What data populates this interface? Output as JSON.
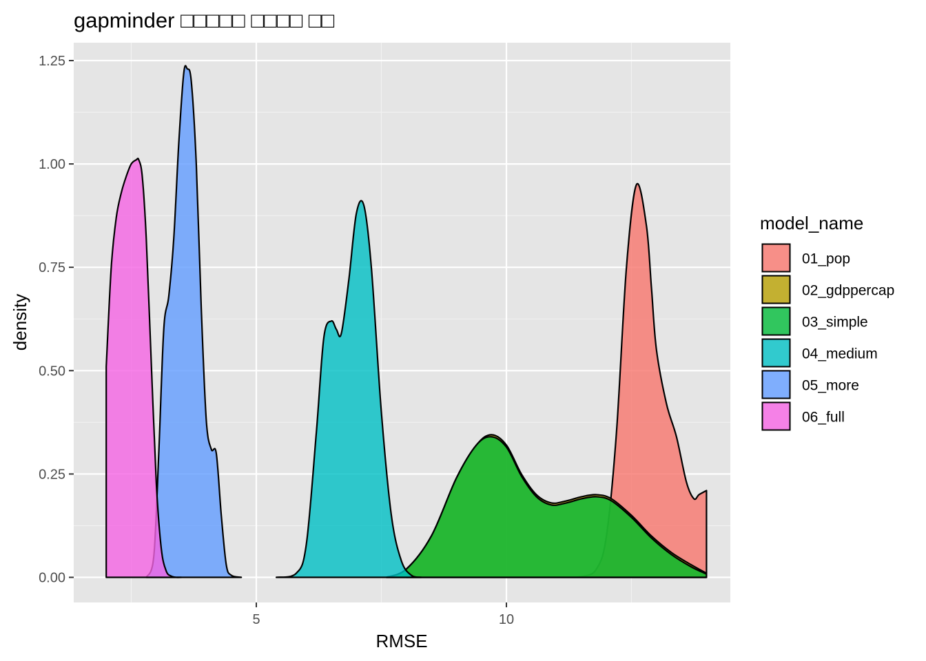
{
  "chart_data": {
    "type": "area",
    "title": "gapminder □□□□□ □□□□ □□",
    "xlabel": "RMSE",
    "ylabel": "density",
    "xlim": [
      1.9,
      14.0
    ],
    "ylim": [
      0.0,
      1.25
    ],
    "x_ticks": [
      5,
      10
    ],
    "x_tick_labels": [
      "5",
      "10"
    ],
    "y_ticks": [
      0.0,
      0.25,
      0.5,
      0.75,
      1.0,
      1.25
    ],
    "y_tick_labels": [
      "0.00",
      "0.25",
      "0.50",
      "0.75",
      "1.00",
      "1.25"
    ],
    "grid": true,
    "fill_alpha": 0.8,
    "legend": {
      "title": "model_name",
      "position": "right"
    },
    "series": [
      {
        "name": "01_pop",
        "color": "#F8766D",
        "x": [
          8.0,
          9.0,
          10.0,
          11.0,
          11.5,
          11.8,
          12.0,
          12.2,
          12.4,
          12.6,
          12.8,
          12.9,
          13.0,
          13.2,
          13.4,
          13.6,
          13.75,
          13.85,
          14.0
        ],
        "y": [
          0.0,
          0.0,
          0.0,
          0.0,
          0.002,
          0.02,
          0.1,
          0.35,
          0.75,
          0.95,
          0.85,
          0.7,
          0.55,
          0.42,
          0.34,
          0.23,
          0.19,
          0.2,
          0.21
        ]
      },
      {
        "name": "02_gdppercap",
        "color": "#B79F00",
        "x": [
          7.6,
          8.0,
          8.5,
          9.0,
          9.4,
          9.7,
          10.0,
          10.3,
          10.6,
          10.9,
          11.2,
          11.5,
          11.8,
          12.1,
          12.5,
          12.9,
          13.3,
          13.7,
          14.0
        ],
        "y": [
          0.0,
          0.02,
          0.1,
          0.24,
          0.32,
          0.345,
          0.32,
          0.25,
          0.2,
          0.18,
          0.185,
          0.195,
          0.2,
          0.19,
          0.15,
          0.1,
          0.06,
          0.03,
          0.01
        ]
      },
      {
        "name": "03_simple",
        "color": "#00BA38",
        "x": [
          7.6,
          8.0,
          8.5,
          9.0,
          9.4,
          9.7,
          10.0,
          10.3,
          10.6,
          10.9,
          11.2,
          11.5,
          11.8,
          12.1,
          12.5,
          12.9,
          13.3,
          13.7,
          14.0
        ],
        "y": [
          0.0,
          0.02,
          0.1,
          0.24,
          0.32,
          0.34,
          0.315,
          0.245,
          0.195,
          0.175,
          0.18,
          0.19,
          0.195,
          0.185,
          0.145,
          0.095,
          0.055,
          0.025,
          0.008
        ]
      },
      {
        "name": "04_medium",
        "color": "#00BFC4",
        "x": [
          5.4,
          5.8,
          6.0,
          6.2,
          6.35,
          6.5,
          6.6,
          6.7,
          6.85,
          7.0,
          7.15,
          7.3,
          7.5,
          7.7,
          7.9,
          8.1,
          8.3
        ],
        "y": [
          0.0,
          0.01,
          0.08,
          0.35,
          0.58,
          0.62,
          0.6,
          0.59,
          0.72,
          0.88,
          0.9,
          0.75,
          0.4,
          0.15,
          0.04,
          0.005,
          0.0
        ]
      },
      {
        "name": "05_more",
        "color": "#619CFF",
        "x": [
          2.8,
          2.95,
          3.05,
          3.15,
          3.25,
          3.35,
          3.45,
          3.55,
          3.62,
          3.7,
          3.8,
          3.9,
          4.0,
          4.1,
          4.2,
          4.3,
          4.4,
          4.5,
          4.7
        ],
        "y": [
          0.0,
          0.05,
          0.3,
          0.6,
          0.68,
          0.82,
          1.05,
          1.22,
          1.23,
          1.2,
          1.0,
          0.65,
          0.38,
          0.31,
          0.3,
          0.15,
          0.03,
          0.005,
          0.0
        ]
      },
      {
        "name": "06_full",
        "color": "#F564E3",
        "x": [
          2.0,
          2.1,
          2.2,
          2.3,
          2.4,
          2.5,
          2.6,
          2.65,
          2.72,
          2.8,
          2.9,
          3.0,
          3.1,
          3.2,
          3.3,
          3.4,
          3.5
        ],
        "y": [
          0.51,
          0.75,
          0.87,
          0.93,
          0.97,
          1.0,
          1.01,
          1.01,
          0.97,
          0.82,
          0.52,
          0.23,
          0.07,
          0.015,
          0.003,
          0.0,
          0.0
        ]
      }
    ]
  }
}
